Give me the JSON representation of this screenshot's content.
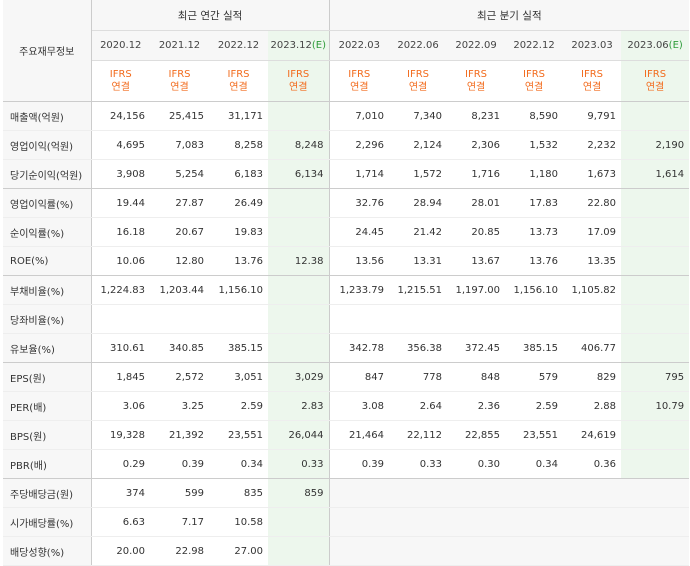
{
  "header": {
    "row_label": "주요재무정보",
    "annual_title": "최근 연간 실적",
    "quarter_title": "최근 분기 실적",
    "estimate_mark": "(E)"
  },
  "annual_periods": [
    "2020.12",
    "2021.12",
    "2022.12",
    "2023.12"
  ],
  "quarter_periods": [
    "2022.03",
    "2022.06",
    "2022.09",
    "2022.12",
    "2023.03",
    "2023.06"
  ],
  "ifrs": {
    "top": "IFRS",
    "bottom": "연결"
  },
  "rows": [
    {
      "label": "매출액(억원)",
      "annual": [
        "24,156",
        "25,415",
        "31,171",
        ""
      ],
      "quarter": [
        "7,010",
        "7,340",
        "8,231",
        "8,590",
        "9,791",
        ""
      ]
    },
    {
      "label": "영업이익(억원)",
      "annual": [
        "4,695",
        "7,083",
        "8,258",
        "8,248"
      ],
      "quarter": [
        "2,296",
        "2,124",
        "2,306",
        "1,532",
        "2,232",
        "2,190"
      ]
    },
    {
      "label": "당기순이익(억원)",
      "annual": [
        "3,908",
        "5,254",
        "6,183",
        "6,134"
      ],
      "quarter": [
        "1,714",
        "1,572",
        "1,716",
        "1,180",
        "1,673",
        "1,614"
      ]
    },
    {
      "label": "영업이익률(%)",
      "annual": [
        "19.44",
        "27.87",
        "26.49",
        ""
      ],
      "quarter": [
        "32.76",
        "28.94",
        "28.01",
        "17.83",
        "22.80",
        ""
      ]
    },
    {
      "label": "순이익률(%)",
      "annual": [
        "16.18",
        "20.67",
        "19.83",
        ""
      ],
      "quarter": [
        "24.45",
        "21.42",
        "20.85",
        "13.73",
        "17.09",
        ""
      ]
    },
    {
      "label": "ROE(%)",
      "annual": [
        "10.06",
        "12.80",
        "13.76",
        "12.38"
      ],
      "quarter": [
        "13.56",
        "13.31",
        "13.67",
        "13.76",
        "13.35",
        ""
      ]
    },
    {
      "label": "부채비율(%)",
      "annual": [
        "1,224.83",
        "1,203.44",
        "1,156.10",
        ""
      ],
      "quarter": [
        "1,233.79",
        "1,215.51",
        "1,197.00",
        "1,156.10",
        "1,105.82",
        ""
      ]
    },
    {
      "label": "당좌비율(%)",
      "annual": [
        "",
        "",
        "",
        ""
      ],
      "quarter": [
        "",
        "",
        "",
        "",
        "",
        ""
      ]
    },
    {
      "label": "유보율(%)",
      "annual": [
        "310.61",
        "340.85",
        "385.15",
        ""
      ],
      "quarter": [
        "342.78",
        "356.38",
        "372.45",
        "385.15",
        "406.77",
        ""
      ]
    },
    {
      "label": "EPS(원)",
      "annual": [
        "1,845",
        "2,572",
        "3,051",
        "3,029"
      ],
      "quarter": [
        "847",
        "778",
        "848",
        "579",
        "829",
        "795"
      ]
    },
    {
      "label": "PER(배)",
      "annual": [
        "3.06",
        "3.25",
        "2.59",
        "2.83"
      ],
      "quarter": [
        "3.08",
        "2.64",
        "2.36",
        "2.59",
        "2.88",
        "10.79"
      ]
    },
    {
      "label": "BPS(원)",
      "annual": [
        "19,328",
        "21,392",
        "23,551",
        "26,044"
      ],
      "quarter": [
        "21,464",
        "22,112",
        "22,855",
        "23,551",
        "24,619",
        ""
      ]
    },
    {
      "label": "PBR(배)",
      "annual": [
        "0.29",
        "0.39",
        "0.34",
        "0.33"
      ],
      "quarter": [
        "0.39",
        "0.33",
        "0.30",
        "0.34",
        "0.36",
        ""
      ]
    },
    {
      "label": "주당배당금(원)",
      "annual": [
        "374",
        "599",
        "835",
        "859"
      ],
      "quarter": null
    },
    {
      "label": "시가배당률(%)",
      "annual": [
        "6.63",
        "7.17",
        "10.58",
        ""
      ],
      "quarter": null
    },
    {
      "label": "배당성향(%)",
      "annual": [
        "20.00",
        "22.98",
        "27.00",
        ""
      ],
      "quarter": null
    }
  ],
  "group_breaks_after": [
    2,
    5,
    8,
    12
  ],
  "colors": {
    "ifrs_orange": "#f26b1d",
    "estimate_green_bg": "#edf7ed",
    "estimate_text": "#2e9c3a",
    "header_bg": "#f7f7f7"
  }
}
